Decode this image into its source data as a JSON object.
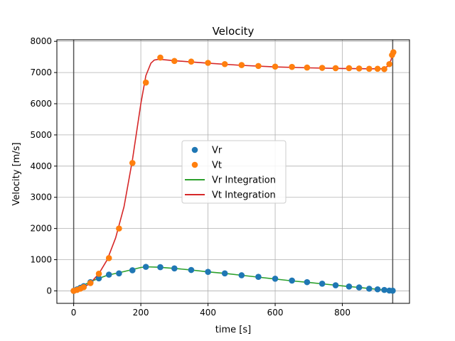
{
  "chart_data": {
    "type": "scatter",
    "title": "Velocity",
    "xlabel": "time [s]",
    "ylabel": "Velocity [m/s]",
    "xlim": [
      -50,
      1000
    ],
    "ylim": [
      -400,
      8050
    ],
    "xticks": [
      0,
      200,
      400,
      600,
      800
    ],
    "yticks": [
      0,
      1000,
      2000,
      3000,
      4000,
      5000,
      6000,
      7000,
      8000
    ],
    "grid": true,
    "legend_position": "center",
    "vertical_markers": [
      0,
      950
    ],
    "colors": {
      "vr_points": "#1f77b4",
      "vt_points": "#ff7f0e",
      "vr_line": "#2ca02c",
      "vt_line": "#d62728",
      "marker_line": "#555555"
    },
    "series": [
      {
        "name": "Vr",
        "kind": "points",
        "color": "#1f77b4",
        "x": [
          0,
          10,
          20,
          30,
          50,
          75,
          105,
          135,
          175,
          215,
          258,
          300,
          350,
          400,
          450,
          500,
          550,
          600,
          650,
          695,
          740,
          780,
          820,
          850,
          880,
          905,
          925,
          940,
          950
        ],
        "y": [
          0,
          50,
          100,
          150,
          280,
          400,
          520,
          560,
          660,
          770,
          760,
          720,
          670,
          610,
          560,
          500,
          450,
          390,
          330,
          280,
          230,
          180,
          140,
          110,
          70,
          50,
          30,
          10,
          5
        ]
      },
      {
        "name": "Vt",
        "kind": "points",
        "color": "#ff7f0e",
        "x": [
          0,
          10,
          20,
          30,
          50,
          75,
          105,
          135,
          175,
          215,
          258,
          300,
          350,
          400,
          450,
          500,
          550,
          600,
          650,
          695,
          740,
          780,
          820,
          850,
          880,
          905,
          925,
          940,
          948,
          952
        ],
        "y": [
          0,
          30,
          70,
          120,
          250,
          550,
          1050,
          2000,
          4100,
          6680,
          7480,
          7370,
          7350,
          7310,
          7270,
          7240,
          7210,
          7190,
          7180,
          7160,
          7150,
          7140,
          7140,
          7130,
          7120,
          7120,
          7110,
          7270,
          7560,
          7650
        ]
      },
      {
        "name": "Vr Integration",
        "kind": "line",
        "color": "#2ca02c",
        "x": [
          0,
          20,
          50,
          100,
          150,
          200,
          220,
          250,
          300,
          350,
          400,
          450,
          500,
          550,
          600,
          650,
          700,
          750,
          800,
          850,
          900,
          940,
          950
        ],
        "y": [
          0,
          120,
          300,
          500,
          620,
          750,
          770,
          760,
          720,
          670,
          610,
          560,
          500,
          440,
          380,
          320,
          270,
          215,
          160,
          110,
          55,
          15,
          5
        ]
      },
      {
        "name": "Vt Integration",
        "kind": "line",
        "color": "#d62728",
        "x": [
          0,
          25,
          50,
          75,
          100,
          125,
          150,
          175,
          200,
          215,
          230,
          240,
          250,
          260,
          300,
          400,
          500,
          600,
          700,
          800,
          880,
          920,
          935,
          945,
          950
        ],
        "y": [
          0,
          80,
          250,
          550,
          1000,
          1700,
          2700,
          4200,
          6000,
          6900,
          7300,
          7400,
          7420,
          7420,
          7380,
          7300,
          7230,
          7180,
          7150,
          7130,
          7120,
          7120,
          7200,
          7400,
          7620
        ]
      }
    ]
  }
}
